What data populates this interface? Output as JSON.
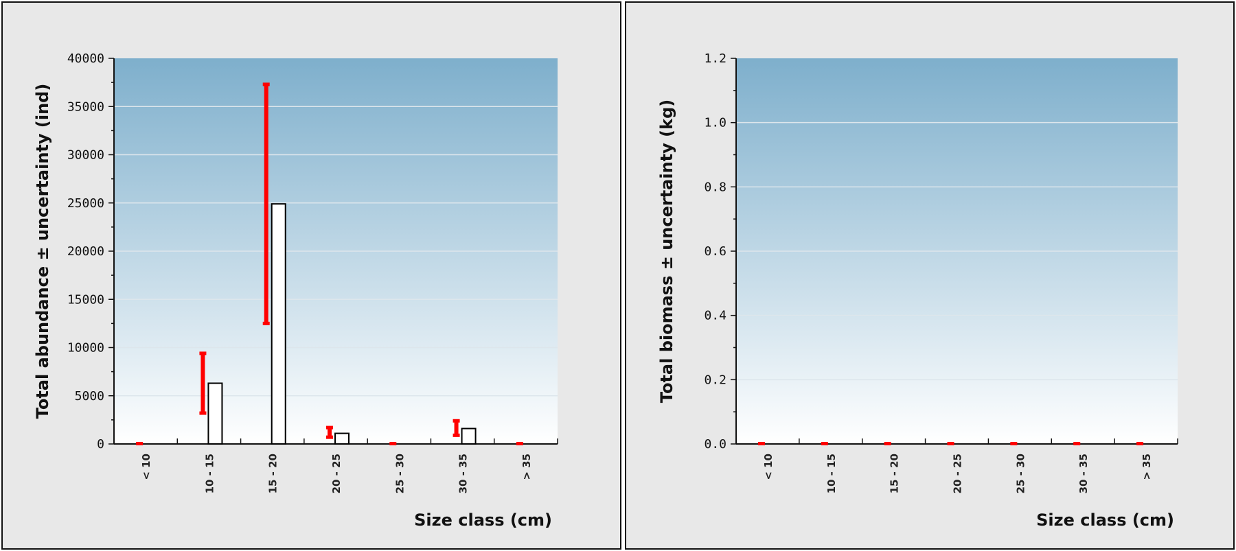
{
  "chart_data": [
    {
      "type": "bar",
      "title": "",
      "xlabel": "Size class (cm)",
      "ylabel": "Total abundance ± uncertainty (ind)",
      "categories": [
        "< 10",
        "10 - 15",
        "15 - 20",
        "20 - 25",
        "25 - 30",
        "30 - 35",
        "> 35"
      ],
      "values": [
        0,
        6300,
        24900,
        1100,
        0,
        1600,
        0
      ],
      "error_low": [
        0,
        3200,
        12500,
        700,
        0,
        900,
        0
      ],
      "error_high": [
        0,
        9400,
        37300,
        1700,
        0,
        2400,
        0
      ],
      "ylim": [
        0,
        40000
      ],
      "yticks": [
        0,
        5000,
        10000,
        15000,
        20000,
        25000,
        30000,
        35000,
        40000
      ],
      "ytick_labels": [
        "0",
        "5000",
        "10000",
        "15000",
        "20000",
        "25000",
        "30000",
        "35000",
        "40000"
      ],
      "grid": true,
      "colors": {
        "background_top": "#7eafcc",
        "background_bottom": "#ffffff",
        "bar_fill": "#ffffff",
        "bar_stroke": "#000000",
        "error": "#ff0000",
        "grid": "#dde6ec"
      }
    },
    {
      "type": "bar",
      "title": "",
      "xlabel": "Size class (cm)",
      "ylabel": "Total biomass ± uncertainty (kg)",
      "categories": [
        "< 10",
        "10 - 15",
        "15 - 20",
        "20 - 25",
        "25 - 30",
        "30 - 35",
        "> 35"
      ],
      "values": [
        0,
        0,
        0,
        0,
        0,
        0,
        0
      ],
      "error_low": [
        0,
        0,
        0,
        0,
        0,
        0,
        0
      ],
      "error_high": [
        0,
        0,
        0,
        0,
        0,
        0,
        0
      ],
      "ylim": [
        0,
        1.2
      ],
      "yticks": [
        0,
        0.2,
        0.4,
        0.6,
        0.8,
        1.0,
        1.2
      ],
      "ytick_labels": [
        "0.0",
        "0.2",
        "0.4",
        "0.6",
        "0.8",
        "1.0",
        "1.2"
      ],
      "grid": true,
      "colors": {
        "background_top": "#7eafcc",
        "background_bottom": "#ffffff",
        "bar_fill": "#ffffff",
        "bar_stroke": "#000000",
        "error": "#ff0000",
        "grid": "#dde6ec"
      }
    }
  ]
}
